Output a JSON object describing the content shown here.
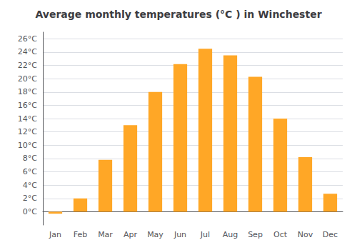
{
  "chart_data": {
    "type": "bar",
    "title": "Average monthly temperatures (°C ) in Winchester",
    "categories": [
      "Jan",
      "Feb",
      "Mar",
      "Apr",
      "May",
      "Jun",
      "Jul",
      "Aug",
      "Sep",
      "Oct",
      "Nov",
      "Dec"
    ],
    "values": [
      -0.3,
      2.0,
      7.8,
      13.0,
      18.0,
      22.2,
      24.5,
      23.5,
      20.3,
      14.0,
      8.2,
      2.7
    ],
    "color": "#FFA726",
    "ylim": [
      -2,
      27
    ],
    "yticks": [
      {
        "value": 0,
        "label": "0°C"
      },
      {
        "value": 2,
        "label": "2°C"
      },
      {
        "value": 4,
        "label": "4°C"
      },
      {
        "value": 6,
        "label": "6°C"
      },
      {
        "value": 8,
        "label": "8°C"
      },
      {
        "value": 10,
        "label": "10°C"
      },
      {
        "value": 12,
        "label": "12°C"
      },
      {
        "value": 14,
        "label": "14°C"
      },
      {
        "value": 16,
        "label": "16°C"
      },
      {
        "value": 18,
        "label": "18°C"
      },
      {
        "value": 20,
        "label": "20°C"
      },
      {
        "value": 22,
        "label": "22°C"
      },
      {
        "value": 24,
        "label": "24°C"
      },
      {
        "value": 26,
        "label": "26°C"
      }
    ],
    "grid": true
  }
}
